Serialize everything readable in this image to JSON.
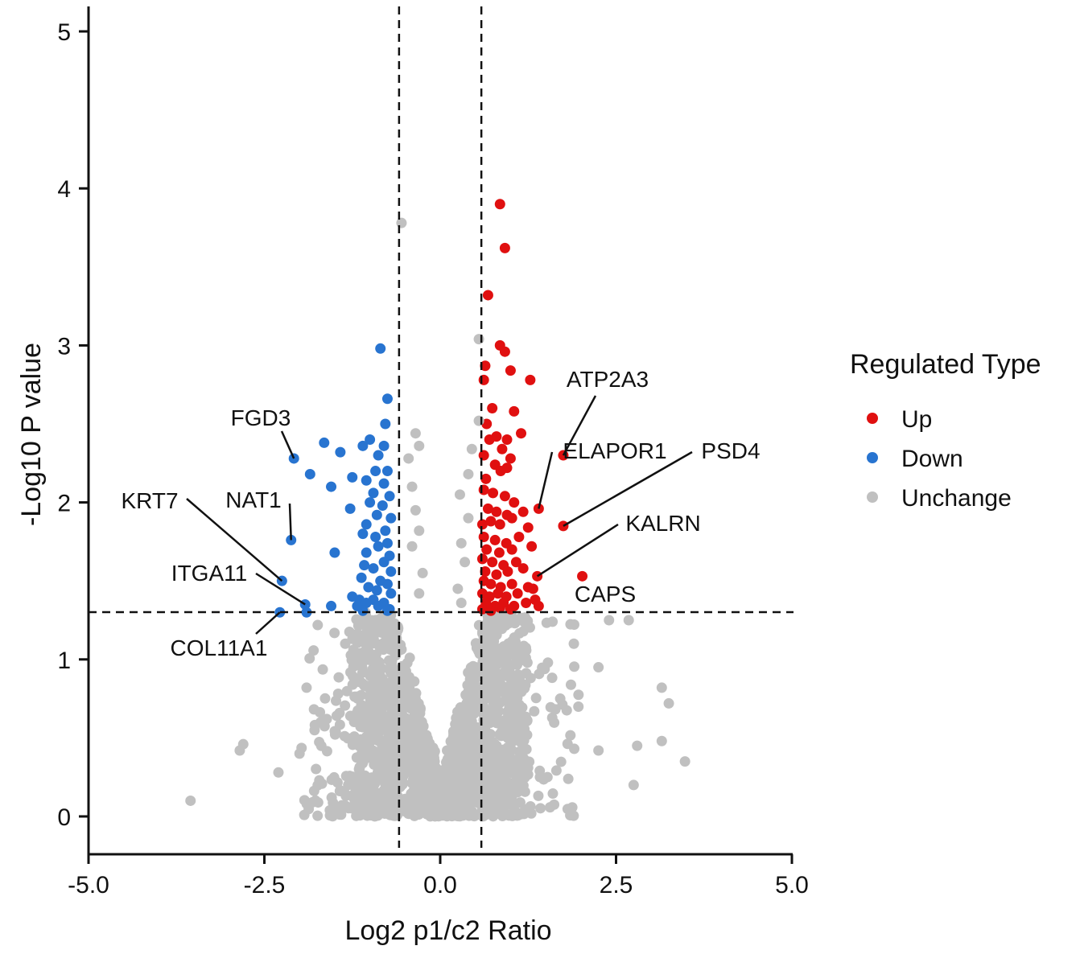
{
  "chart_data": {
    "type": "scatter",
    "title": "",
    "xlabel": "Log2 p1/c2 Ratio",
    "ylabel": "-Log10 P value",
    "xlim": [
      -5.0,
      5.0
    ],
    "ylim": [
      -0.2,
      5.2
    ],
    "x_ticks": [
      -5.0,
      -2.5,
      0.0,
      2.5,
      5.0
    ],
    "x_tick_labels": [
      "-5.0",
      "-2.5",
      "0.0",
      "2.5",
      "5.0"
    ],
    "y_ticks": [
      0,
      1,
      2,
      3,
      4,
      5
    ],
    "y_tick_labels": [
      "0",
      "1",
      "2",
      "3",
      "4",
      "5"
    ],
    "thresholds": {
      "fc_low": -0.585,
      "fc_high": 0.585,
      "pvalue": 1.301
    },
    "colors": {
      "Up": "#e01010",
      "Down": "#2874d0",
      "Unchange": "#c0c0c0"
    },
    "legend": {
      "title": "Regulated Type",
      "placement": "right",
      "entries": [
        "Up",
        "Down",
        "Unchange"
      ]
    },
    "series": [
      {
        "name": "Up",
        "points": [
          [
            0.85,
            3.9
          ],
          [
            0.92,
            3.62
          ],
          [
            0.68,
            3.32
          ],
          [
            0.85,
            3.0
          ],
          [
            0.92,
            2.96
          ],
          [
            0.64,
            2.87
          ],
          [
            1.28,
            2.78
          ],
          [
            0.62,
            2.78
          ],
          [
            1.0,
            2.84
          ],
          [
            0.74,
            2.6
          ],
          [
            1.05,
            2.58
          ],
          [
            0.66,
            2.5
          ],
          [
            1.15,
            2.44
          ],
          [
            0.8,
            2.42
          ],
          [
            0.7,
            2.4
          ],
          [
            0.95,
            2.4
          ],
          [
            0.88,
            2.34
          ],
          [
            0.62,
            2.3
          ],
          [
            1.0,
            2.28
          ],
          [
            0.78,
            2.24
          ],
          [
            0.95,
            2.22
          ],
          [
            0.65,
            2.15
          ],
          [
            0.86,
            2.2
          ],
          [
            0.62,
            2.08
          ],
          [
            0.75,
            2.06
          ],
          [
            0.92,
            2.04
          ],
          [
            1.05,
            2.0
          ],
          [
            0.68,
            1.96
          ],
          [
            0.8,
            1.94
          ],
          [
            0.95,
            1.92
          ],
          [
            1.18,
            1.94
          ],
          [
            0.6,
            1.86
          ],
          [
            0.72,
            1.88
          ],
          [
            0.85,
            1.86
          ],
          [
            1.02,
            1.9
          ],
          [
            1.25,
            1.84
          ],
          [
            0.62,
            1.78
          ],
          [
            0.78,
            1.76
          ],
          [
            0.94,
            1.74
          ],
          [
            1.12,
            1.78
          ],
          [
            0.66,
            1.7
          ],
          [
            0.84,
            1.68
          ],
          [
            1.02,
            1.7
          ],
          [
            1.3,
            1.72
          ],
          [
            0.6,
            1.64
          ],
          [
            0.74,
            1.62
          ],
          [
            0.9,
            1.6
          ],
          [
            1.08,
            1.62
          ],
          [
            0.64,
            1.56
          ],
          [
            0.8,
            1.54
          ],
          [
            0.96,
            1.56
          ],
          [
            1.18,
            1.58
          ],
          [
            0.62,
            1.5
          ],
          [
            0.72,
            1.48
          ],
          [
            0.86,
            1.46
          ],
          [
            1.02,
            1.48
          ],
          [
            1.25,
            1.46
          ],
          [
            0.6,
            1.42
          ],
          [
            0.7,
            1.4
          ],
          [
            0.82,
            1.42
          ],
          [
            0.94,
            1.4
          ],
          [
            1.1,
            1.42
          ],
          [
            0.65,
            1.36
          ],
          [
            0.78,
            1.34
          ],
          [
            0.9,
            1.36
          ],
          [
            1.05,
            1.34
          ],
          [
            1.22,
            1.36
          ],
          [
            1.35,
            1.38
          ],
          [
            0.6,
            1.32
          ],
          [
            0.72,
            1.31
          ],
          [
            0.85,
            1.33
          ],
          [
            1.0,
            1.32
          ],
          [
            1.4,
            1.96
          ],
          [
            1.75,
            1.85
          ],
          [
            1.38,
            1.53
          ],
          [
            2.02,
            1.53
          ],
          [
            1.75,
            2.3
          ],
          [
            1.32,
            1.45
          ],
          [
            1.4,
            1.34
          ]
        ]
      },
      {
        "name": "Down",
        "points": [
          [
            -0.85,
            2.98
          ],
          [
            -0.75,
            2.66
          ],
          [
            -0.78,
            2.5
          ],
          [
            -1.0,
            2.4
          ],
          [
            -0.8,
            2.36
          ],
          [
            -1.65,
            2.38
          ],
          [
            -1.42,
            2.32
          ],
          [
            -2.08,
            2.28
          ],
          [
            -1.85,
            2.18
          ],
          [
            -1.1,
            2.36
          ],
          [
            -0.88,
            2.3
          ],
          [
            -0.92,
            2.2
          ],
          [
            -0.75,
            2.2
          ],
          [
            -1.55,
            2.1
          ],
          [
            -1.25,
            2.16
          ],
          [
            -1.05,
            2.14
          ],
          [
            -0.8,
            2.12
          ],
          [
            -0.95,
            2.06
          ],
          [
            -0.72,
            2.04
          ],
          [
            -1.0,
            2.0
          ],
          [
            -1.28,
            1.96
          ],
          [
            -0.82,
            1.98
          ],
          [
            -0.7,
            1.9
          ],
          [
            -0.9,
            1.92
          ],
          [
            -1.05,
            1.86
          ],
          [
            -0.78,
            1.82
          ],
          [
            -1.1,
            1.8
          ],
          [
            -0.92,
            1.78
          ],
          [
            -2.12,
            1.76
          ],
          [
            -0.75,
            1.74
          ],
          [
            -0.88,
            1.72
          ],
          [
            -1.5,
            1.68
          ],
          [
            -0.72,
            1.66
          ],
          [
            -1.05,
            1.68
          ],
          [
            -0.8,
            1.62
          ],
          [
            -1.08,
            1.6
          ],
          [
            -0.95,
            1.58
          ],
          [
            -0.7,
            1.56
          ],
          [
            -1.12,
            1.52
          ],
          [
            -0.85,
            1.5
          ],
          [
            -0.75,
            1.48
          ],
          [
            -2.25,
            1.5
          ],
          [
            -1.02,
            1.46
          ],
          [
            -0.9,
            1.44
          ],
          [
            -0.7,
            1.42
          ],
          [
            -1.25,
            1.4
          ],
          [
            -1.15,
            1.38
          ],
          [
            -0.95,
            1.38
          ],
          [
            -0.8,
            1.36
          ],
          [
            -1.92,
            1.35
          ],
          [
            -1.55,
            1.34
          ],
          [
            -1.18,
            1.34
          ],
          [
            -1.05,
            1.36
          ],
          [
            -0.88,
            1.34
          ],
          [
            -0.72,
            1.32
          ],
          [
            -1.9,
            1.3
          ],
          [
            -2.28,
            1.3
          ],
          [
            -1.1,
            1.31
          ],
          [
            -0.75,
            1.31
          ]
        ]
      },
      {
        "name": "Unchange",
        "points": [
          [
            -0.55,
            3.78
          ],
          [
            0.55,
            3.04
          ],
          [
            -0.35,
            2.44
          ],
          [
            0.55,
            2.52
          ],
          [
            -0.3,
            2.36
          ],
          [
            -0.45,
            2.28
          ],
          [
            0.45,
            2.34
          ],
          [
            -0.4,
            2.1
          ],
          [
            0.4,
            2.18
          ],
          [
            -0.35,
            1.95
          ],
          [
            0.4,
            1.9
          ],
          [
            0.28,
            2.05
          ],
          [
            -0.3,
            1.82
          ],
          [
            0.3,
            1.74
          ],
          [
            -0.4,
            1.72
          ],
          [
            0.35,
            1.62
          ],
          [
            -0.25,
            1.55
          ],
          [
            0.25,
            1.45
          ],
          [
            -0.3,
            1.42
          ],
          [
            0.3,
            1.36
          ],
          [
            -3.55,
            0.1
          ],
          [
            -2.8,
            0.46
          ],
          [
            -2.85,
            0.42
          ],
          [
            -2.3,
            0.28
          ],
          [
            -1.9,
            0.82
          ],
          [
            -1.7,
            0.6
          ],
          [
            -2.0,
            0.4
          ],
          [
            -1.35,
            1.1
          ],
          [
            3.25,
            0.72
          ],
          [
            3.15,
            0.82
          ],
          [
            3.15,
            0.48
          ],
          [
            3.48,
            0.35
          ],
          [
            2.8,
            0.45
          ],
          [
            2.75,
            0.2
          ],
          [
            2.25,
            0.42
          ],
          [
            2.4,
            1.25
          ],
          [
            2.68,
            1.25
          ],
          [
            2.25,
            0.95
          ],
          [
            1.9,
            1.1
          ]
        ]
      }
    ],
    "annotations": [
      {
        "label": "FGD3",
        "x": -2.08,
        "y": 2.28
      },
      {
        "label": "NAT1",
        "x": -2.12,
        "y": 1.76
      },
      {
        "label": "KRT7",
        "x": -2.25,
        "y": 1.5
      },
      {
        "label": "ITGA11",
        "x": -1.92,
        "y": 1.35
      },
      {
        "label": "COL11A1",
        "x": -2.28,
        "y": 1.3
      },
      {
        "label": "ATP2A3",
        "x": 1.75,
        "y": 2.3
      },
      {
        "label": "ELAPOR1",
        "x": 1.4,
        "y": 1.96
      },
      {
        "label": "PSD4",
        "x": 1.75,
        "y": 1.85
      },
      {
        "label": "KALRN",
        "x": 1.38,
        "y": 1.53
      },
      {
        "label": "CAPS",
        "x": 2.02,
        "y": 1.53
      }
    ]
  }
}
